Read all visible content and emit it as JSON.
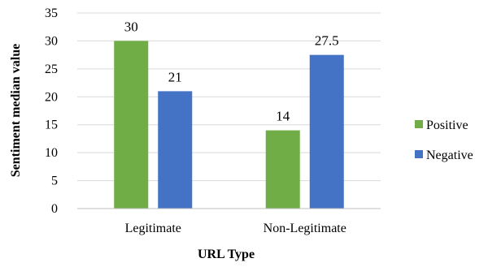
{
  "chart_data": {
    "type": "bar",
    "title": "",
    "xlabel": "URL Type",
    "ylabel": "Sentiment median value",
    "categories": [
      "Legitimate",
      "Non-Legitimate"
    ],
    "series": [
      {
        "name": "Positive",
        "values": [
          30,
          14
        ],
        "color": "#70ad47"
      },
      {
        "name": "Negative",
        "values": [
          21,
          27.5
        ],
        "color": "#4472c4"
      }
    ],
    "data_labels": [
      [
        "30",
        "14"
      ],
      [
        "21",
        "27.5"
      ]
    ],
    "ylim": [
      0,
      35
    ],
    "yticks": [
      0,
      5,
      10,
      15,
      20,
      25,
      30,
      35
    ],
    "grid": true,
    "legend_position": "right"
  }
}
